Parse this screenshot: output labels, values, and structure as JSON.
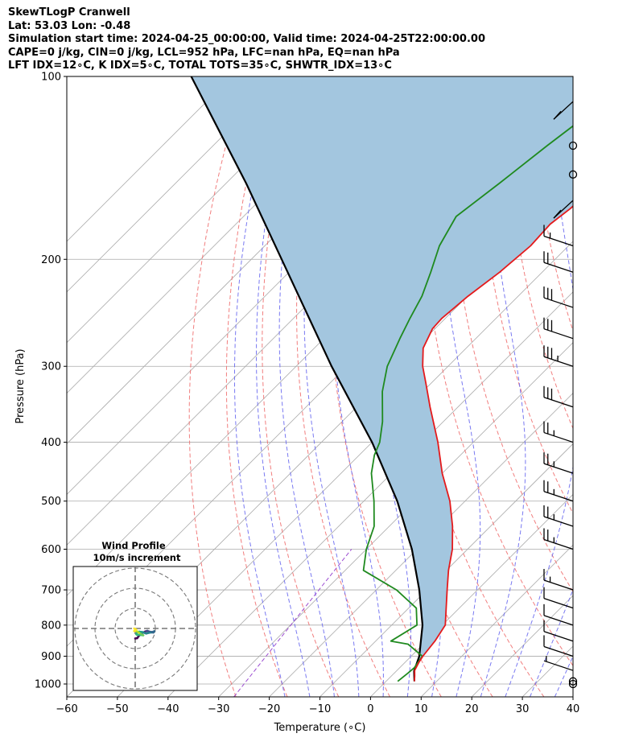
{
  "header": {
    "line1": "SkewTLogP Cranwell",
    "line2": "Lat: 53.03   Lon: -0.48",
    "line3": "Simulation start time: 2024-04-25_00:00:00, Valid time: 2024-04-25T22:00:00.00",
    "line4": "CAPE=0 j/kg, CIN=0 j/kg, LCL=952 hPa, LFC=nan hPa, EQ=nan hPa",
    "line5": "LFT IDX=12∘C, K IDX=5∘C, TOTAL TOTS=35∘C, SHWTR_IDX=13∘C"
  },
  "chart_data": {
    "type": "line",
    "subtype": "skew-t log-p",
    "xlabel": "Temperature (∘C)",
    "ylabel": "Pressure (hPa)",
    "xlim": [
      -60,
      40
    ],
    "ylim": [
      1050,
      100
    ],
    "y_scale": "log",
    "grid": true,
    "x_ticks": [
      -60,
      -50,
      -40,
      -30,
      -20,
      -10,
      0,
      10,
      20,
      30,
      40
    ],
    "x_tick_labels": [
      "−60",
      "−50",
      "−40",
      "−30",
      "−20",
      "−10",
      "0",
      "10",
      "20",
      "30",
      "40"
    ],
    "y_ticks": [
      1000,
      900,
      800,
      700,
      600,
      500,
      400,
      300,
      200,
      100
    ],
    "y_tick_labels": [
      "1000",
      "900",
      "800",
      "700",
      "600",
      "500",
      "400",
      "300",
      "200",
      "100"
    ],
    "colors": {
      "temperature": "#e41a1c",
      "dewpoint": "#1f8a1f",
      "parcel": "#000000",
      "fill": "#a3c6df",
      "isotherm": "#aaaaaa",
      "dry_adiabat": "#f07070",
      "moist_adiabat": "#6a6af0",
      "mixing_ratio": "#9a4ad0"
    },
    "temperature": {
      "p": [
        990,
        970,
        950,
        920,
        900,
        850,
        800,
        750,
        700,
        650,
        600,
        550,
        500,
        450,
        400,
        350,
        320,
        300,
        280,
        260,
        250,
        230,
        210,
        190,
        175,
        165,
        160,
        150,
        140,
        130,
        120,
        110,
        100
      ],
      "t": [
        5.6,
        4.6,
        3.5,
        2.7,
        2.3,
        1.7,
        0.6,
        -2.6,
        -6.0,
        -9.6,
        -13.0,
        -17.5,
        -23.0,
        -30.0,
        -37.0,
        -45.5,
        -51.0,
        -55.0,
        -58.5,
        -60.5,
        -60.7,
        -59.9,
        -58.4,
        -57.5,
        -57.9,
        -57.0,
        -56.8,
        -56.1,
        -56.2,
        -54.8,
        -54.8,
        -53.5,
        -52.6
      ]
    },
    "dewpoint": {
      "p": [
        990,
        960,
        940,
        900,
        860,
        850,
        800,
        750,
        700,
        650,
        600,
        550,
        500,
        450,
        420,
        400,
        370,
        330,
        300,
        270,
        250,
        230,
        210,
        190,
        170,
        150,
        130,
        115,
        100
      ],
      "t": [
        2.3,
        2.7,
        2.9,
        2.2,
        -3.0,
        -7.0,
        -5.0,
        -8.5,
        -16.0,
        -26.4,
        -30.0,
        -33.0,
        -38.0,
        -44.0,
        -47.0,
        -48.5,
        -52.0,
        -58.0,
        -62.0,
        -65.0,
        -67.0,
        -69.0,
        -72.0,
        -75.5,
        -78.0,
        -76.0,
        -74.0,
        -72.0,
        -70.0
      ]
    },
    "parcel": {
      "p": [
        990,
        952,
        900,
        800,
        700,
        600,
        500,
        400,
        300,
        200,
        150,
        100
      ],
      "t": [
        5.6,
        3.5,
        1.6,
        -3.9,
        -11.5,
        -21.0,
        -33.4,
        -50.0,
        -73.0,
        -104.0,
        -126.0,
        -158.0
      ]
    },
    "wind_barbs": [
      {
        "p": 1000,
        "speed_kt": 0
      },
      {
        "p": 990,
        "speed_kt": 0
      },
      {
        "p": 950,
        "speed_kt": 5
      },
      {
        "p": 900,
        "speed_kt": 10
      },
      {
        "p": 850,
        "speed_kt": 10
      },
      {
        "p": 800,
        "speed_kt": 10
      },
      {
        "p": 750,
        "speed_kt": 10
      },
      {
        "p": 700,
        "speed_kt": 15
      },
      {
        "p": 600,
        "speed_kt": 25
      },
      {
        "p": 550,
        "speed_kt": 25
      },
      {
        "p": 500,
        "speed_kt": 25
      },
      {
        "p": 450,
        "speed_kt": 25
      },
      {
        "p": 400,
        "speed_kt": 25
      },
      {
        "p": 350,
        "speed_kt": 30
      },
      {
        "p": 300,
        "speed_kt": 35
      },
      {
        "p": 270,
        "speed_kt": 30
      },
      {
        "p": 240,
        "speed_kt": 30
      },
      {
        "p": 210,
        "speed_kt": 20
      },
      {
        "p": 190,
        "speed_kt": 15
      },
      {
        "p": 160,
        "speed_kt": 10
      },
      {
        "p": 145,
        "speed_kt": 0
      },
      {
        "p": 130,
        "speed_kt": 0
      },
      {
        "p": 110,
        "speed_kt": 10
      }
    ],
    "hodograph": {
      "title": "Wind Profile",
      "subtitle": "10m/s increment",
      "u": [
        0,
        1,
        2,
        3,
        4,
        5,
        6,
        7,
        8.5,
        9.5,
        9,
        7.5,
        5.5,
        3.5,
        2,
        1,
        0.5,
        1,
        2.5,
        4,
        3,
        2,
        1,
        0.5,
        -0.5,
        0.5,
        -0.5
      ],
      "v": [
        -5,
        -4.8,
        -3.5,
        -2.5,
        -2,
        -1.5,
        -1.2,
        -1.6,
        -1.8,
        -1.4,
        -2,
        -2,
        -2.5,
        -1.8,
        -1.6,
        -2,
        -2.8,
        -3.2,
        -3.2,
        -3.4,
        -2.8,
        -2.2,
        -1.5,
        -1.3,
        -1.3,
        -0.6,
        0
      ]
    }
  }
}
